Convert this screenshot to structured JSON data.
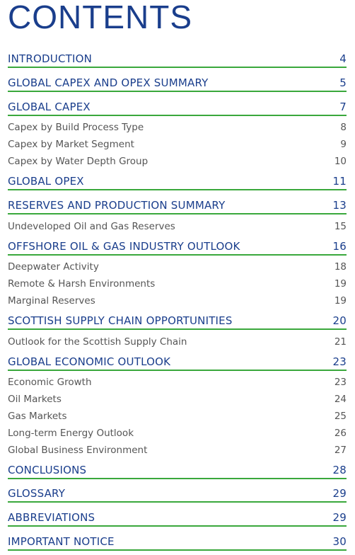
{
  "title": "CONTENTS",
  "entries": [
    {
      "type": "section",
      "label": "INTRODUCTION",
      "page": "4"
    },
    {
      "type": "section",
      "label": "GLOBAL CAPEX AND OPEX SUMMARY",
      "page": "5"
    },
    {
      "type": "section",
      "label": "GLOBAL CAPEX",
      "page": "7"
    },
    {
      "type": "sub",
      "label": "Capex by Build Process Type",
      "page": "8"
    },
    {
      "type": "sub",
      "label": "Capex by Market Segment",
      "page": "9"
    },
    {
      "type": "sub",
      "label": "Capex by Water Depth Group",
      "page": "10"
    },
    {
      "type": "section",
      "label": "GLOBAL OPEX",
      "page": "11"
    },
    {
      "type": "section",
      "label": "RESERVES AND PRODUCTION SUMMARY",
      "page": "13"
    },
    {
      "type": "sub",
      "label": "Undeveloped Oil and Gas Reserves",
      "page": "15"
    },
    {
      "type": "section",
      "label": "OFFSHORE OIL & GAS INDUSTRY OUTLOOK",
      "page": "16"
    },
    {
      "type": "sub",
      "label": "Deepwater Activity",
      "page": "18"
    },
    {
      "type": "sub",
      "label": "Remote & Harsh Environments",
      "page": "19"
    },
    {
      "type": "sub",
      "label": "Marginal Reserves",
      "page": "19"
    },
    {
      "type": "section",
      "label": "SCOTTISH SUPPLY CHAIN OPPORTUNITIES",
      "page": "20"
    },
    {
      "type": "sub",
      "label": "Outlook for the Scottish Supply Chain",
      "page": "21"
    },
    {
      "type": "section",
      "label": "GLOBAL ECONOMIC OUTLOOK",
      "page": "23"
    },
    {
      "type": "sub",
      "label": "Economic Growth",
      "page": "23"
    },
    {
      "type": "sub",
      "label": "Oil Markets",
      "page": "24"
    },
    {
      "type": "sub",
      "label": "Gas Markets",
      "page": "25"
    },
    {
      "type": "sub",
      "label": "Long-term Energy Outlook",
      "page": "26"
    },
    {
      "type": "sub",
      "label": "Global Business Environment",
      "page": "27"
    },
    {
      "type": "section",
      "label": "CONCLUSIONS",
      "page": "28"
    },
    {
      "type": "section",
      "label": "GLOSSARY",
      "page": "29"
    },
    {
      "type": "section",
      "label": "ABBREVIATIONS",
      "page": "29"
    },
    {
      "type": "section",
      "label": "IMPORTANT NOTICE",
      "page": "30"
    }
  ]
}
